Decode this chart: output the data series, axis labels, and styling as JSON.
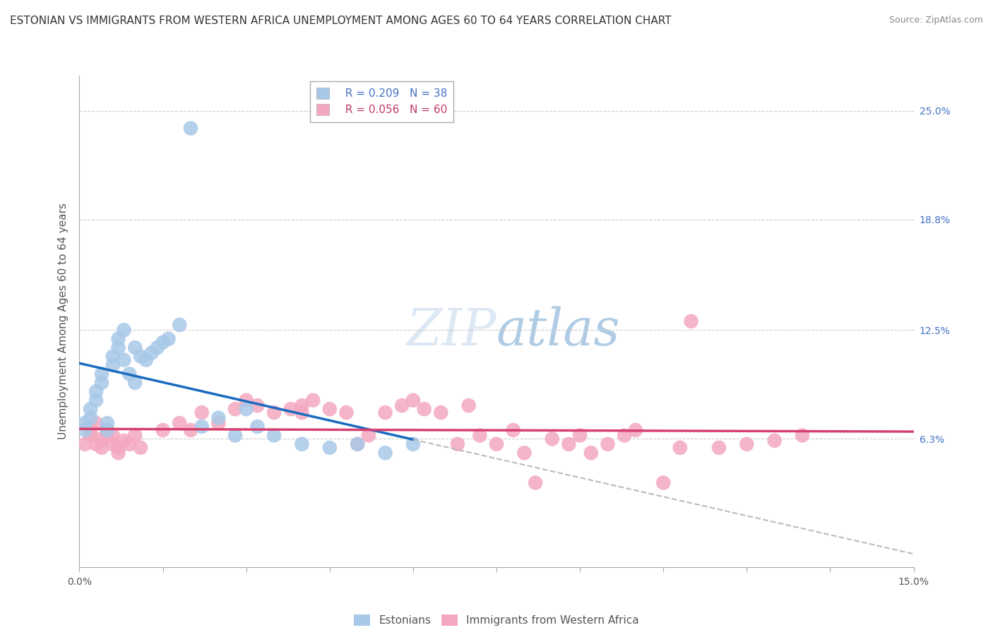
{
  "title": "ESTONIAN VS IMMIGRANTS FROM WESTERN AFRICA UNEMPLOYMENT AMONG AGES 60 TO 64 YEARS CORRELATION CHART",
  "source": "Source: ZipAtlas.com",
  "ylabel": "Unemployment Among Ages 60 to 64 years",
  "ytick_labels": [
    "6.3%",
    "12.5%",
    "18.8%",
    "25.0%"
  ],
  "ytick_values": [
    0.063,
    0.125,
    0.188,
    0.25
  ],
  "xlim": [
    0.0,
    0.15
  ],
  "ylim": [
    -0.01,
    0.27
  ],
  "estonian_R": 0.209,
  "estonian_N": 38,
  "western_africa_R": 0.056,
  "western_africa_N": 60,
  "estonian_color": "#a8c8e8",
  "western_africa_color": "#f4a8c0",
  "estonian_line_color": "#1a6bbf",
  "western_africa_line_color": "#d64070",
  "legend_label_estonian": "Estonians",
  "legend_label_western_africa": "Immigrants from Western Africa",
  "title_fontsize": 11,
  "source_fontsize": 9,
  "axis_label_fontsize": 11,
  "tick_fontsize": 10,
  "legend_fontsize": 11,
  "estonian_x": [
    0.001,
    0.001,
    0.002,
    0.002,
    0.003,
    0.003,
    0.004,
    0.004,
    0.005,
    0.005,
    0.006,
    0.006,
    0.007,
    0.007,
    0.008,
    0.008,
    0.009,
    0.01,
    0.01,
    0.011,
    0.012,
    0.013,
    0.014,
    0.015,
    0.016,
    0.018,
    0.02,
    0.022,
    0.025,
    0.028,
    0.03,
    0.032,
    0.035,
    0.04,
    0.045,
    0.05,
    0.055,
    0.06
  ],
  "estonian_y": [
    0.068,
    0.072,
    0.075,
    0.08,
    0.085,
    0.09,
    0.095,
    0.1,
    0.068,
    0.072,
    0.105,
    0.11,
    0.115,
    0.12,
    0.125,
    0.108,
    0.1,
    0.095,
    0.115,
    0.11,
    0.108,
    0.112,
    0.115,
    0.118,
    0.12,
    0.128,
    0.24,
    0.07,
    0.075,
    0.065,
    0.08,
    0.07,
    0.065,
    0.06,
    0.058,
    0.06,
    0.055,
    0.06
  ],
  "western_africa_x": [
    0.001,
    0.002,
    0.002,
    0.003,
    0.003,
    0.004,
    0.004,
    0.005,
    0.005,
    0.006,
    0.006,
    0.007,
    0.007,
    0.008,
    0.009,
    0.01,
    0.011,
    0.015,
    0.018,
    0.02,
    0.022,
    0.025,
    0.028,
    0.03,
    0.032,
    0.035,
    0.038,
    0.04,
    0.04,
    0.042,
    0.045,
    0.048,
    0.05,
    0.052,
    0.055,
    0.058,
    0.06,
    0.062,
    0.065,
    0.068,
    0.07,
    0.072,
    0.075,
    0.078,
    0.08,
    0.082,
    0.085,
    0.088,
    0.09,
    0.092,
    0.095,
    0.098,
    0.1,
    0.105,
    0.108,
    0.11,
    0.115,
    0.12,
    0.125,
    0.13
  ],
  "western_africa_y": [
    0.06,
    0.065,
    0.068,
    0.072,
    0.06,
    0.058,
    0.063,
    0.065,
    0.068,
    0.06,
    0.065,
    0.055,
    0.058,
    0.062,
    0.06,
    0.065,
    0.058,
    0.068,
    0.072,
    0.068,
    0.078,
    0.072,
    0.08,
    0.085,
    0.082,
    0.078,
    0.08,
    0.082,
    0.078,
    0.085,
    0.08,
    0.078,
    0.06,
    0.065,
    0.078,
    0.082,
    0.085,
    0.08,
    0.078,
    0.06,
    0.082,
    0.065,
    0.06,
    0.068,
    0.055,
    0.038,
    0.063,
    0.06,
    0.065,
    0.055,
    0.06,
    0.065,
    0.068,
    0.038,
    0.058,
    0.13,
    0.058,
    0.06,
    0.062,
    0.065
  ],
  "xtick_positions": [
    0.0,
    0.015,
    0.03,
    0.045,
    0.06,
    0.075,
    0.09,
    0.105,
    0.12,
    0.135,
    0.15
  ],
  "xtick_labels_show": [
    "0.0%",
    "",
    "",
    "",
    "",
    "",
    "",
    "",
    "",
    "",
    "15.0%"
  ]
}
